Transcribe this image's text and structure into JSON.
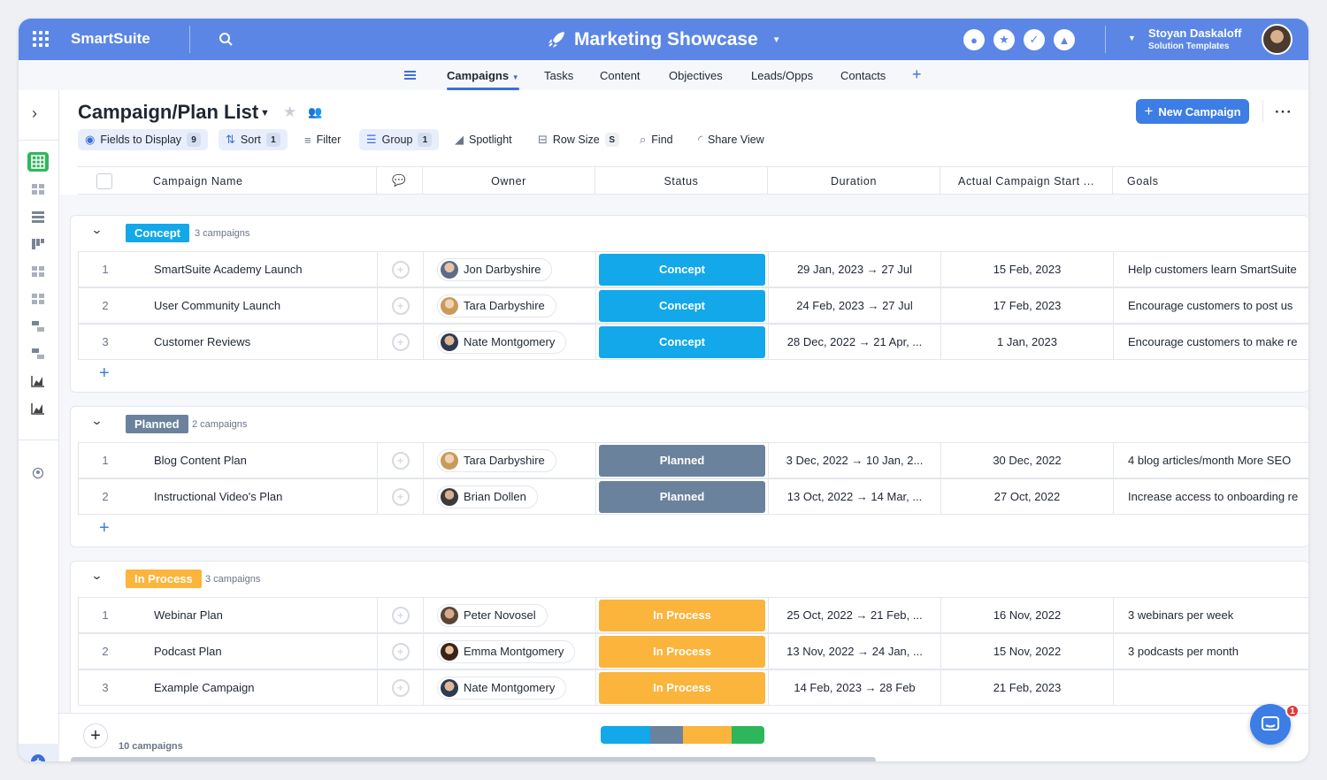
{
  "app": {
    "brand": "SmartSuite",
    "workspace_title": "Marketing Showcase"
  },
  "user": {
    "name": "Stoyan Daskaloff",
    "role": "Solution Templates"
  },
  "nav": {
    "tabs": [
      "Campaigns",
      "Tasks",
      "Content",
      "Objectives",
      "Leads/Opps",
      "Contacts"
    ],
    "active_tab": "Campaigns"
  },
  "header": {
    "title": "Campaign/Plan List",
    "new_button": "New Campaign"
  },
  "toolbar": {
    "fields": {
      "label": "Fields to Display",
      "count": "9"
    },
    "sort": {
      "label": "Sort",
      "count": "1"
    },
    "filter": {
      "label": "Filter"
    },
    "group": {
      "label": "Group",
      "count": "1"
    },
    "spotlight": {
      "label": "Spotlight"
    },
    "rowsize": {
      "label": "Row Size",
      "value": "S"
    },
    "find": {
      "label": "Find"
    },
    "share": {
      "label": "Share View"
    }
  },
  "columns": [
    "Campaign Name",
    "Owner",
    "Status",
    "Duration",
    "Actual Campaign Start ...",
    "Goals"
  ],
  "colors": {
    "concept": "#12a8e9",
    "planned": "#6b829c",
    "in_process": "#fbb43c",
    "green": "#2eb75a",
    "accent": "#3d7de6"
  },
  "groups": [
    {
      "name": "Concept",
      "count_label": "3 campaigns",
      "rows": [
        {
          "num": "1",
          "name": "SmartSuite Academy Launch",
          "owner": "Jon Darbyshire",
          "status": "Concept",
          "duration": "29 Jan, 2023 → 27 Jul",
          "start": "15 Feb, 2023",
          "goals": "Help customers learn SmartSuite"
        },
        {
          "num": "2",
          "name": "User Community Launch",
          "owner": "Tara Darbyshire",
          "status": "Concept",
          "duration": "24 Feb, 2023 → 27 Jul",
          "start": "17 Feb, 2023",
          "goals": "Encourage customers to post us"
        },
        {
          "num": "3",
          "name": "Customer Reviews",
          "owner": "Nate Montgomery",
          "status": "Concept",
          "duration": "28 Dec, 2022 → 21 Apr, ...",
          "start": "1 Jan, 2023",
          "goals": "Encourage customers to make re"
        }
      ]
    },
    {
      "name": "Planned",
      "count_label": "2 campaigns",
      "rows": [
        {
          "num": "1",
          "name": "Blog Content Plan",
          "owner": "Tara Darbyshire",
          "status": "Planned",
          "duration": "3 Dec, 2022 → 10 Jan, 2...",
          "start": "30 Dec, 2022",
          "goals": "4 blog articles/month More SEO"
        },
        {
          "num": "2",
          "name": "Instructional Video's Plan",
          "owner": "Brian Dollen",
          "status": "Planned",
          "duration": "13 Oct, 2022 → 14 Mar, ...",
          "start": "27 Oct, 2022",
          "goals": "Increase access to onboarding re"
        }
      ]
    },
    {
      "name": "In Process",
      "count_label": "3 campaigns",
      "rows": [
        {
          "num": "1",
          "name": "Webinar Plan",
          "owner": "Peter Novosel",
          "status": "In Process",
          "duration": "25 Oct, 2022 → 21 Feb, ...",
          "start": "16 Nov, 2022",
          "goals": "3 webinars per week"
        },
        {
          "num": "2",
          "name": "Podcast Plan",
          "owner": "Emma Montgomery",
          "status": "In Process",
          "duration": "13 Nov, 2022 → 24 Jan, ...",
          "start": "15 Nov, 2022",
          "goals": "3 podcasts per month"
        },
        {
          "num": "3",
          "name": "Example Campaign",
          "owner": "Nate Montgomery",
          "status": "In Process",
          "duration": "14 Feb, 2023 → 28 Feb",
          "start": "21 Feb, 2023",
          "goals": ""
        }
      ]
    }
  ],
  "footer": {
    "total": "10 campaigns"
  },
  "chat": {
    "badge": "1"
  }
}
